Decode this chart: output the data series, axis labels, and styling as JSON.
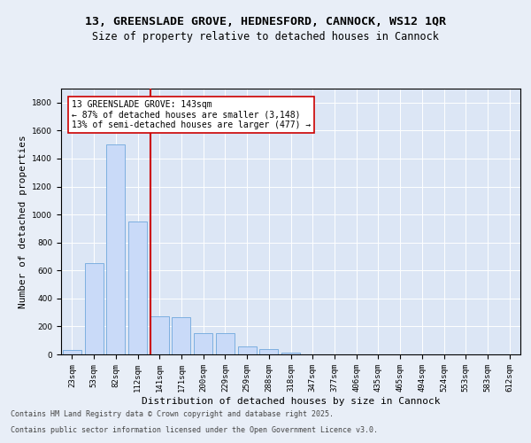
{
  "title_line1": "13, GREENSLADE GROVE, HEDNESFORD, CANNOCK, WS12 1QR",
  "title_line2": "Size of property relative to detached houses in Cannock",
  "xlabel": "Distribution of detached houses by size in Cannock",
  "ylabel": "Number of detached properties",
  "categories": [
    "23sqm",
    "53sqm",
    "82sqm",
    "112sqm",
    "141sqm",
    "171sqm",
    "200sqm",
    "229sqm",
    "259sqm",
    "288sqm",
    "318sqm",
    "347sqm",
    "377sqm",
    "406sqm",
    "435sqm",
    "465sqm",
    "494sqm",
    "524sqm",
    "553sqm",
    "583sqm",
    "612sqm"
  ],
  "values": [
    30,
    650,
    1500,
    950,
    270,
    265,
    155,
    155,
    60,
    40,
    15,
    2,
    0,
    0,
    0,
    0,
    0,
    0,
    0,
    0,
    0
  ],
  "bar_color": "#c9daf8",
  "bar_edge_color": "#6fa8dc",
  "vline_x_index": 4,
  "vline_color": "#cc0000",
  "annotation_text": "13 GREENSLADE GROVE: 143sqm\n← 87% of detached houses are smaller (3,148)\n13% of semi-detached houses are larger (477) →",
  "annotation_box_color": "#ffffff",
  "annotation_box_edge_color": "#cc0000",
  "ylim": [
    0,
    1900
  ],
  "yticks": [
    0,
    200,
    400,
    600,
    800,
    1000,
    1200,
    1400,
    1600,
    1800
  ],
  "bg_color": "#e8eef7",
  "plot_bg_color": "#dce6f5",
  "footer_line1": "Contains HM Land Registry data © Crown copyright and database right 2025.",
  "footer_line2": "Contains public sector information licensed under the Open Government Licence v3.0.",
  "title_fontsize": 9.5,
  "subtitle_fontsize": 8.5,
  "tick_fontsize": 6.5,
  "label_fontsize": 8,
  "annotation_fontsize": 7,
  "footer_fontsize": 6
}
